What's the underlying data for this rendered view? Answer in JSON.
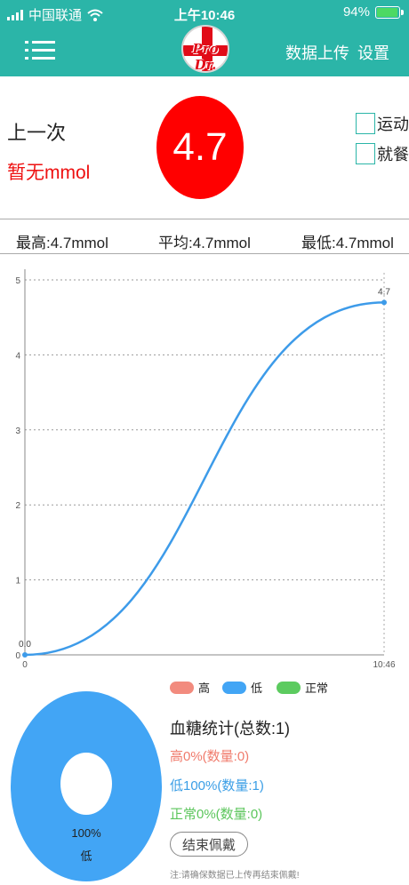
{
  "status_bar": {
    "carrier": "中国联通",
    "time": "上午10:46",
    "battery": "94%"
  },
  "header": {
    "logo_text": "Pro Dr.",
    "upload_label": "数据上传",
    "settings_label": "设置",
    "color": "#2bb5a8"
  },
  "summary": {
    "last_label": "上一次",
    "last_value": "暂无mmol",
    "current_reading": "4.7",
    "exercise_label": "运动",
    "meal_label": "就餐"
  },
  "stats": {
    "max": "最高:4.7mmol",
    "avg": "平均:4.7mmol",
    "min": "最低:4.7mmol"
  },
  "chart_data": {
    "type": "line",
    "x": [
      "0",
      "10:46"
    ],
    "y": [
      0.0,
      4.7
    ],
    "data_labels": [
      "0.0",
      "4.7"
    ],
    "ylim": [
      0,
      5
    ],
    "yticks": [
      "0",
      "1",
      "2",
      "3",
      "4",
      "5"
    ],
    "grid": true,
    "line_color": "#3d9be9",
    "legend": [
      {
        "name": "高",
        "color": "#f28b7e"
      },
      {
        "name": "低",
        "color": "#42a5f5"
      },
      {
        "name": "正常",
        "color": "#5ccb5f"
      }
    ],
    "legend_position": "bottom"
  },
  "pie": {
    "percent_label": "100%",
    "category_label": "低",
    "value": 1.0,
    "color": "#42a5f5"
  },
  "blood_sugar": {
    "title": "血糖统计(总数:1)",
    "high": "高0%(数量:0)",
    "low": "低100%(数量:1)",
    "normal": "正常0%(数量:0)",
    "high_color": "#f07b6c",
    "low_color": "#3a9ee6",
    "normal_color": "#5cc65c",
    "end_button": "结束佩戴",
    "note": "注:请确保数据已上传再结束佩戴!"
  }
}
